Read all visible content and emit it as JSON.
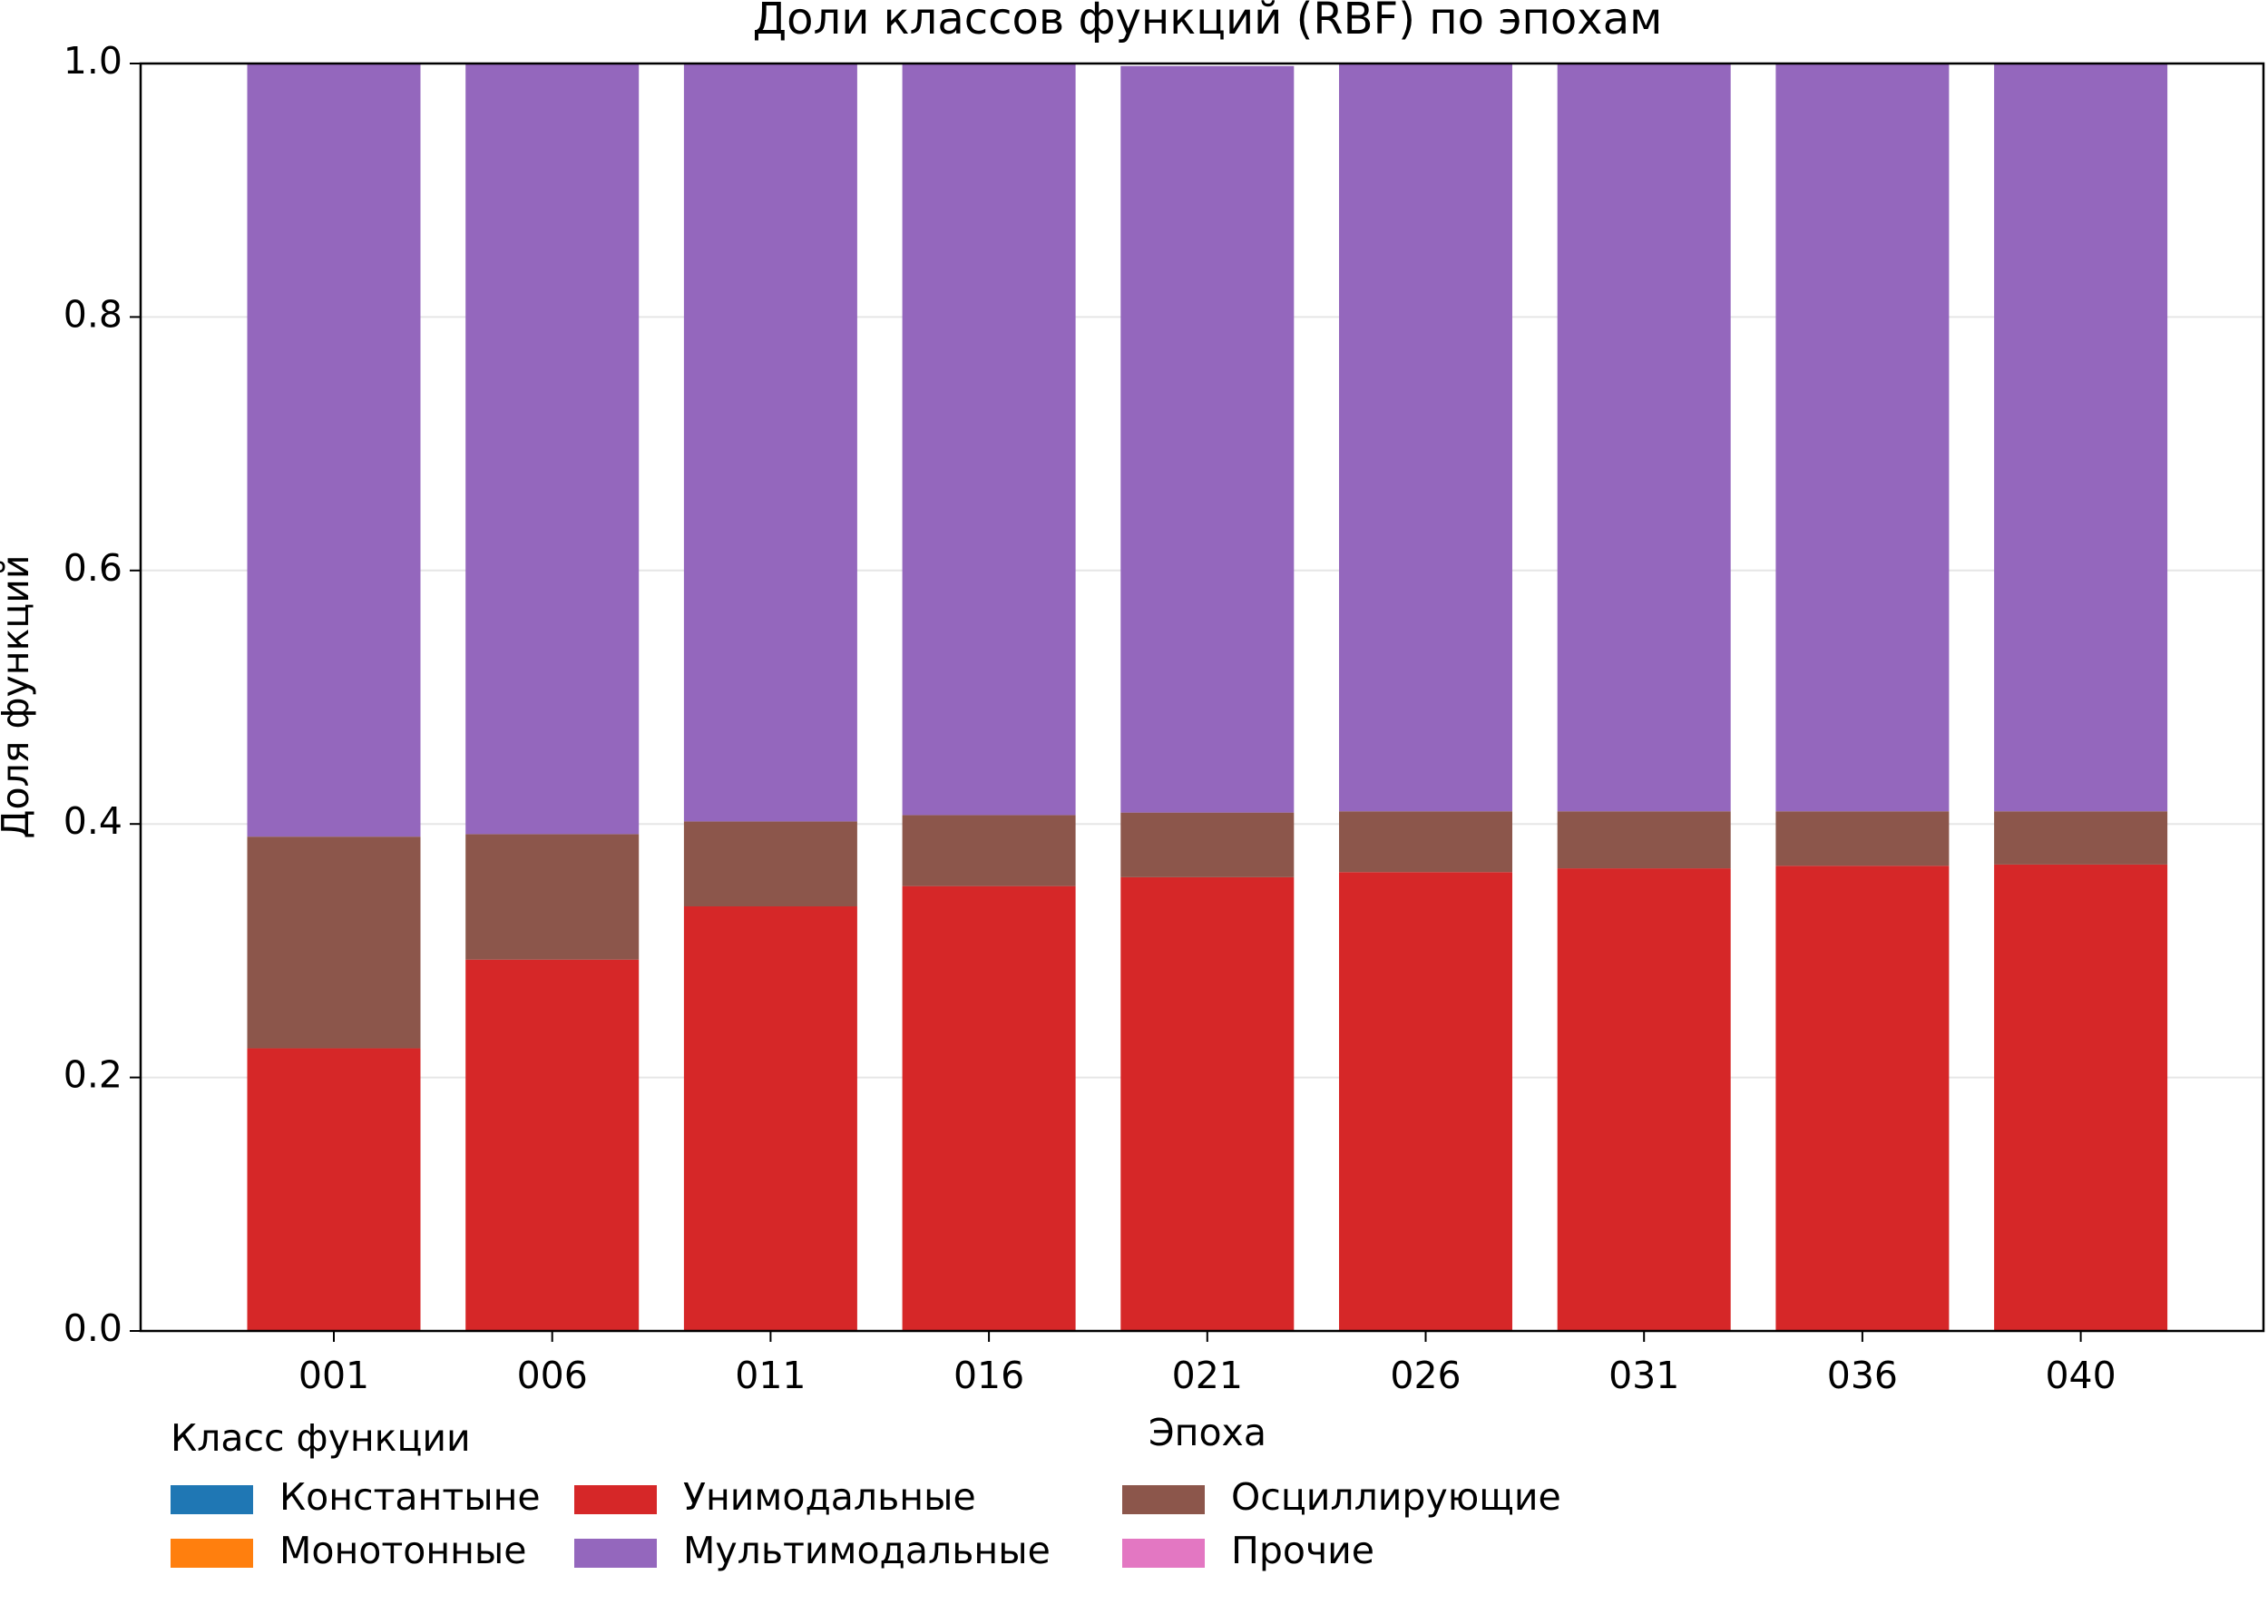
{
  "chart_data": {
    "type": "stacked_bar",
    "title": "Доли классов функций (RBF) по эпохам",
    "xlabel": "Эпоха",
    "ylabel": "Доля функций",
    "categories": [
      "001",
      "006",
      "011",
      "016",
      "021",
      "026",
      "031",
      "036",
      "040"
    ],
    "series": [
      {
        "name": "Константыне",
        "color": "#1f77b4",
        "values": [
          0,
          0,
          0,
          0,
          0,
          0,
          0,
          0,
          0
        ]
      },
      {
        "name": "Монотонные",
        "color": "#ff7f0e",
        "values": [
          0,
          0,
          0,
          0,
          0,
          0,
          0,
          0,
          0
        ]
      },
      {
        "name": "Унимодальные",
        "color": "#d62728",
        "values": [
          0.223,
          0.293,
          0.335,
          0.351,
          0.358,
          0.362,
          0.365,
          0.367,
          0.368
        ]
      },
      {
        "name": "Мультимодальные",
        "color": "#9467bd",
        "values": [
          0.61,
          0.608,
          0.598,
          0.593,
          0.589,
          0.59,
          0.59,
          0.59,
          0.59
        ]
      },
      {
        "name": "Осциллирующие",
        "color": "#8c564b",
        "values": [
          0.167,
          0.099,
          0.067,
          0.056,
          0.051,
          0.048,
          0.045,
          0.043,
          0.042
        ]
      },
      {
        "name": "Прочие",
        "color": "#e377c2",
        "values": [
          0,
          0,
          0,
          0,
          0,
          0,
          0,
          0,
          0
        ]
      }
    ],
    "stack_order": [
      0,
      1,
      2,
      4,
      3,
      5
    ],
    "legend_title": "Класс функции",
    "ylim": [
      0,
      1
    ],
    "yticks": [
      {
        "value": 0,
        "label": "0.0"
      },
      {
        "value": 0.2,
        "label": "0.2"
      },
      {
        "value": 0.4,
        "label": "0.4"
      },
      {
        "value": 0.6,
        "label": "0.6"
      },
      {
        "value": 0.8,
        "label": "0.8"
      },
      {
        "value": 1,
        "label": "1.0"
      }
    ],
    "grid": true
  }
}
